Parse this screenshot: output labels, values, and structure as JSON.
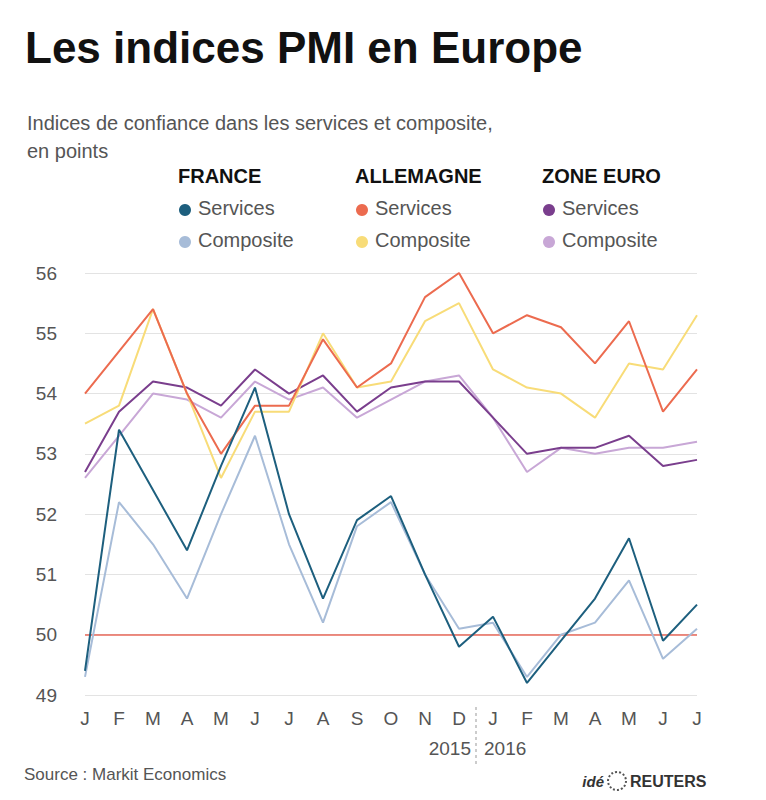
{
  "chart_data": {
    "type": "line",
    "title": "Les indices PMI en Europe",
    "subtitle": "Indices de confiance dans les services et composite,\nen points",
    "categories": [
      "J",
      "F",
      "M",
      "A",
      "M",
      "J",
      "J",
      "A",
      "S",
      "O",
      "N",
      "D",
      "J",
      "F",
      "M",
      "A",
      "M",
      "J",
      "J"
    ],
    "periods": [
      {
        "label": "2015",
        "start": 0,
        "end": 11
      },
      {
        "label": "2016",
        "start": 12,
        "end": 18
      }
    ],
    "ylim": [
      49,
      56
    ],
    "yticks": [
      49,
      50,
      51,
      52,
      53,
      54,
      55,
      56
    ],
    "grid": true,
    "reference_lines": [
      {
        "value": 50,
        "color": "#e8685a"
      }
    ],
    "series": [
      {
        "group": "FRANCE",
        "name": "Services",
        "color": "#1d5f7e",
        "values": [
          49.4,
          53.4,
          52.4,
          51.4,
          52.8,
          54.1,
          52.0,
          50.6,
          51.9,
          52.3,
          51.0,
          49.8,
          50.3,
          49.2,
          49.9,
          50.6,
          51.6,
          49.9,
          50.5
        ]
      },
      {
        "group": "FRANCE",
        "name": "Composite",
        "color": "#a7bcd8",
        "values": [
          49.3,
          52.2,
          51.5,
          50.6,
          52.0,
          53.3,
          51.5,
          50.2,
          51.8,
          52.2,
          51.0,
          50.1,
          50.2,
          49.3,
          50.0,
          50.2,
          50.9,
          49.6,
          50.1
        ]
      },
      {
        "group": "ALLEMAGNE",
        "name": "Services",
        "color": "#ec6b4f",
        "values": [
          54.0,
          54.7,
          55.4,
          54.0,
          53.0,
          53.8,
          53.8,
          54.9,
          54.1,
          54.5,
          55.6,
          56.0,
          55.0,
          55.3,
          55.1,
          54.5,
          55.2,
          53.7,
          54.4
        ]
      },
      {
        "group": "ALLEMAGNE",
        "name": "Composite",
        "color": "#f8dc78",
        "values": [
          53.5,
          53.8,
          55.4,
          54.0,
          52.6,
          53.7,
          53.7,
          55.0,
          54.1,
          54.2,
          55.2,
          55.5,
          54.4,
          54.1,
          54.0,
          53.6,
          54.5,
          54.4,
          55.3
        ]
      },
      {
        "group": "ZONE EURO",
        "name": "Services",
        "color": "#7a3e8d",
        "values": [
          52.7,
          53.7,
          54.2,
          54.1,
          53.8,
          54.4,
          54.0,
          54.3,
          53.7,
          54.1,
          54.2,
          54.2,
          53.6,
          53.0,
          53.1,
          53.1,
          53.3,
          52.8,
          52.9
        ]
      },
      {
        "group": "ZONE EURO",
        "name": "Composite",
        "color": "#c8a7d6",
        "values": [
          52.6,
          53.3,
          54.0,
          53.9,
          53.6,
          54.2,
          53.9,
          54.1,
          53.6,
          53.9,
          54.2,
          54.3,
          53.6,
          52.7,
          53.1,
          53.0,
          53.1,
          53.1,
          53.2
        ]
      }
    ],
    "source": "Source : Markit Economics",
    "credit": [
      "idé",
      "REUTERS"
    ]
  }
}
